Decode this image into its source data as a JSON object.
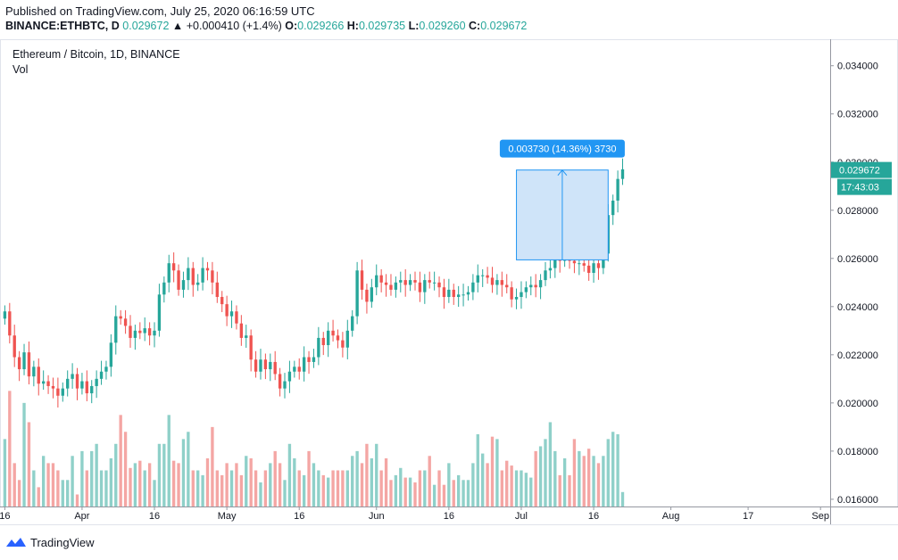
{
  "header": {
    "published": "Published on TradingView.com, July 25, 2020 06:16:59 UTC",
    "symbol": "BINANCE:ETHBTC, D",
    "last": "0.029672",
    "change": "▲ +0.000410 (+1.4%)",
    "o_label": "O:",
    "o_value": "0.029266",
    "h_label": "H:",
    "h_value": "0.029735",
    "l_label": "L:",
    "l_value": "0.029260",
    "c_label": "C:",
    "c_value": "0.029672"
  },
  "legend": {
    "title": "Ethereum / Bitcoin, 1D, BINANCE",
    "vol": "Vol"
  },
  "measure": {
    "label": "0.003730 (14.36%) 3730",
    "from": 0.02594,
    "to": 0.02967,
    "start_day": 106,
    "end_day": 125
  },
  "price_tag": {
    "value": "0.029672",
    "countdown": "17:43:03"
  },
  "footer": {
    "brand": "TradingView"
  },
  "colors": {
    "up": "#26a69a",
    "down": "#ef5350",
    "vol_up": "#8fd0c9",
    "vol_down": "#f4a6a4",
    "measure": "#2196f3",
    "measure_fill": "#cfe4f9"
  },
  "chart_data": {
    "type": "candlestick",
    "title": "Ethereum / Bitcoin, 1D, BINANCE",
    "y_ticks": [
      "0.034000",
      "0.032000",
      "0.030000",
      "0.028000",
      "0.026000",
      "0.024000",
      "0.022000",
      "0.020000",
      "0.018000",
      "0.016000"
    ],
    "y_tick_values": [
      0.034,
      0.032,
      0.03,
      0.028,
      0.026,
      0.024,
      0.022,
      0.02,
      0.018,
      0.016
    ],
    "ylim": [
      0.0157,
      0.0351
    ],
    "x_ticks": [
      {
        "label": "16",
        "day": 0
      },
      {
        "label": "Apr",
        "day": 16
      },
      {
        "label": "16",
        "day": 31
      },
      {
        "label": "May",
        "day": 46
      },
      {
        "label": "16",
        "day": 61
      },
      {
        "label": "Jun",
        "day": 77
      },
      {
        "label": "16",
        "day": 92
      },
      {
        "label": "Jul",
        "day": 107
      },
      {
        "label": "16",
        "day": 122
      },
      {
        "label": "Aug",
        "day": 138
      },
      {
        "label": "17",
        "day": 154
      },
      {
        "label": "Sep",
        "day": 169
      }
    ],
    "x_range_days": [
      -1,
      171
    ],
    "start_date": "2020-03-16",
    "end_date": "2020-07-25",
    "candles_close": [
      0.0238,
      0.0228,
      0.0219,
      0.0214,
      0.0221,
      0.0211,
      0.0215,
      0.0208,
      0.0209,
      0.0207,
      0.0206,
      0.0203,
      0.0206,
      0.021,
      0.0212,
      0.0206,
      0.0209,
      0.0204,
      0.0207,
      0.021,
      0.0213,
      0.0215,
      0.0225,
      0.0236,
      0.0235,
      0.0232,
      0.0227,
      0.023,
      0.0229,
      0.0231,
      0.0228,
      0.023,
      0.0245,
      0.025,
      0.0258,
      0.0255,
      0.0247,
      0.0251,
      0.0256,
      0.0249,
      0.025,
      0.0256,
      0.0255,
      0.025,
      0.0244,
      0.0241,
      0.0236,
      0.0238,
      0.0233,
      0.0227,
      0.0228,
      0.0218,
      0.0213,
      0.0218,
      0.0214,
      0.0217,
      0.0212,
      0.0206,
      0.0209,
      0.0213,
      0.0215,
      0.0213,
      0.0219,
      0.0217,
      0.0219,
      0.0227,
      0.0224,
      0.023,
      0.0228,
      0.0226,
      0.0223,
      0.023,
      0.0236,
      0.0255,
      0.0247,
      0.0242,
      0.0248,
      0.0253,
      0.025,
      0.0249,
      0.0247,
      0.025,
      0.0251,
      0.0249,
      0.0251,
      0.025,
      0.0246,
      0.0251,
      0.025,
      0.025,
      0.0248,
      0.0244,
      0.0247,
      0.0244,
      0.0245,
      0.0245,
      0.0246,
      0.025,
      0.0253,
      0.0253,
      0.0252,
      0.0249,
      0.0251,
      0.0249,
      0.0248,
      0.0243,
      0.0244,
      0.0246,
      0.0248,
      0.0249,
      0.0248,
      0.0251,
      0.0255,
      0.0256,
      0.0261,
      0.0259,
      0.0261,
      0.0259,
      0.0258,
      0.0258,
      0.0257,
      0.0254,
      0.0258,
      0.0256,
      0.0262,
      0.0278,
      0.0284,
      0.0293,
      0.0297
    ],
    "volume_series": [
      0.185,
      0.205,
      0.175,
      0.168,
      0.2,
      0.192,
      0.172,
      0.165,
      0.178,
      0.175,
      0.175,
      0.172,
      0.168,
      0.168,
      0.178,
      0.162,
      0.18,
      0.172,
      0.18,
      0.183,
      0.172,
      0.172,
      0.177,
      0.183,
      0.195,
      0.188,
      0.173,
      0.175,
      0.176,
      0.172,
      0.175,
      0.168,
      0.183,
      0.183,
      0.195,
      0.176,
      0.175,
      0.185,
      0.188,
      0.172,
      0.172,
      0.17,
      0.177,
      0.19,
      0.172,
      0.17,
      0.175,
      0.172,
      0.175,
      0.17,
      0.178,
      0.177,
      0.172,
      0.167,
      0.172,
      0.175,
      0.18,
      0.175,
      0.168,
      0.183,
      0.177,
      0.172,
      0.17,
      0.18,
      0.175,
      0.172,
      0.17,
      0.169,
      0.172,
      0.172,
      0.172,
      0.172,
      0.178,
      0.18,
      0.175,
      0.183,
      0.177,
      0.183,
      0.172,
      0.177,
      0.168,
      0.17,
      0.173,
      0.169,
      0.169,
      0.167,
      0.172,
      0.172,
      0.178,
      0.166,
      0.172,
      0.166,
      0.175,
      0.168,
      0.17,
      0.168,
      0.168,
      0.175,
      0.187,
      0.179,
      0.175,
      0.186,
      0.185,
      0.172,
      0.176,
      0.174,
      0.172,
      0.172,
      0.171,
      0.169,
      0.18,
      0.182,
      0.185,
      0.192,
      0.18,
      0.17,
      0.177,
      0.17,
      0.185,
      0.18,
      0.178,
      0.181,
      0.178,
      0.175,
      0.178,
      0.185,
      0.188,
      0.187,
      0.163
    ]
  }
}
